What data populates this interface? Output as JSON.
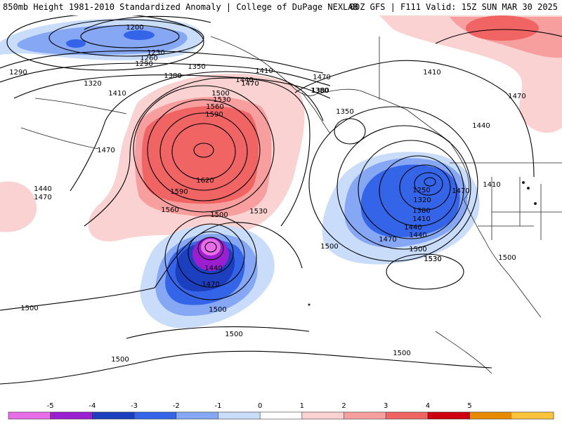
{
  "header": {
    "title": "850mb Height 1981-2010 Standardized Anomaly | College of DuPage NEXLAB",
    "run_info": "00Z GFS | F111 Valid: 15Z SUN MAR 30 2025"
  },
  "contour_labels": [
    "1200",
    "1230",
    "1260",
    "1290",
    "1290",
    "1320",
    "1350",
    "1380",
    "1380",
    "1410",
    "1410",
    "1410",
    "1440",
    "1440",
    "1470",
    "1470",
    "1470",
    "1500",
    "1530",
    "1560",
    "1590",
    "1620",
    "1590",
    "1560",
    "1530",
    "1500",
    "1440",
    "1470",
    "1500",
    "1440",
    "1470",
    "1500",
    "1350",
    "1250",
    "1320",
    "1380",
    "1410",
    "1440",
    "1470",
    "1500",
    "1530",
    "1500",
    "1440",
    "1470",
    "1380",
    "1410",
    "1470",
    "1530",
    "1500",
    "1500",
    "1500",
    "1500"
  ],
  "colorbar": {
    "ticks": [
      "-5",
      "-4",
      "-3",
      "-2",
      "-1",
      "0",
      "1",
      "2",
      "3",
      "4",
      "5"
    ],
    "colors": [
      "#e76ee6",
      "#9b1fd0",
      "#1c3fbf",
      "#3464e8",
      "#86a7f4",
      "#c9dcfa",
      "#ffffff",
      "#fbd2d2",
      "#f79e9e",
      "#f06464",
      "#cc0010",
      "#e88a00",
      "#f9c33c"
    ]
  },
  "anomaly_colors": {
    "pos1": "#fbd2d2",
    "pos2": "#f79e9e",
    "pos3": "#f06464",
    "neg1": "#c9dcfa",
    "neg2": "#86a7f4",
    "neg3": "#3464e8",
    "neg4": "#1c3fbf",
    "neg5": "#9b1fd0",
    "neg6": "#e76ee6"
  }
}
